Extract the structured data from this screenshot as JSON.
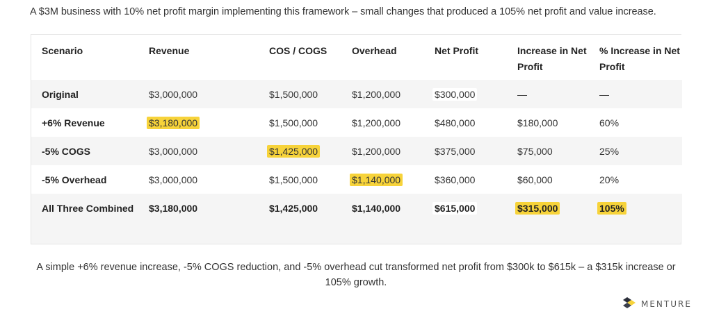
{
  "intro": "A $3M business with 10% net profit margin implementing this framework – small changes that produced a 105% net profit and value increase.",
  "table": {
    "headers": [
      "Scenario",
      "Revenue",
      "COS / COGS",
      "Overhead",
      "Net Profit",
      "Increase in Net Profit",
      "% Increase in Net Profit"
    ],
    "rows": [
      [
        "Original",
        "$3,000,000",
        "$1,500,000",
        "$1,200,000",
        "$300,000",
        "—",
        "—"
      ],
      [
        "+6% Revenue",
        "$3,180,000",
        "$1,500,000",
        "$1,200,000",
        "$480,000",
        "$180,000",
        "60%"
      ],
      [
        "-5% COGS",
        "$3,000,000",
        "$1,425,000",
        "$1,200,000",
        "$375,000",
        "$75,000",
        "25%"
      ],
      [
        "-5% Overhead",
        "$3,000,000",
        "$1,500,000",
        "$1,140,000",
        "$360,000",
        "$60,000",
        "20%"
      ],
      [
        "All Three Combined",
        "$3,180,000",
        "$1,425,000",
        "$1,140,000",
        "$615,000",
        "$315,000",
        "105%"
      ]
    ],
    "highlight_color": "#f7d33a"
  },
  "caption": {
    "line1": "A simple +6% revenue increase, -5% COGS reduction, and -5% overhead cut transformed net profit from $300k to $615k – a $315k increase or",
    "line2": "105% growth."
  },
  "logo": {
    "text": "MENTURE",
    "icon": "menture-logo-icon"
  }
}
